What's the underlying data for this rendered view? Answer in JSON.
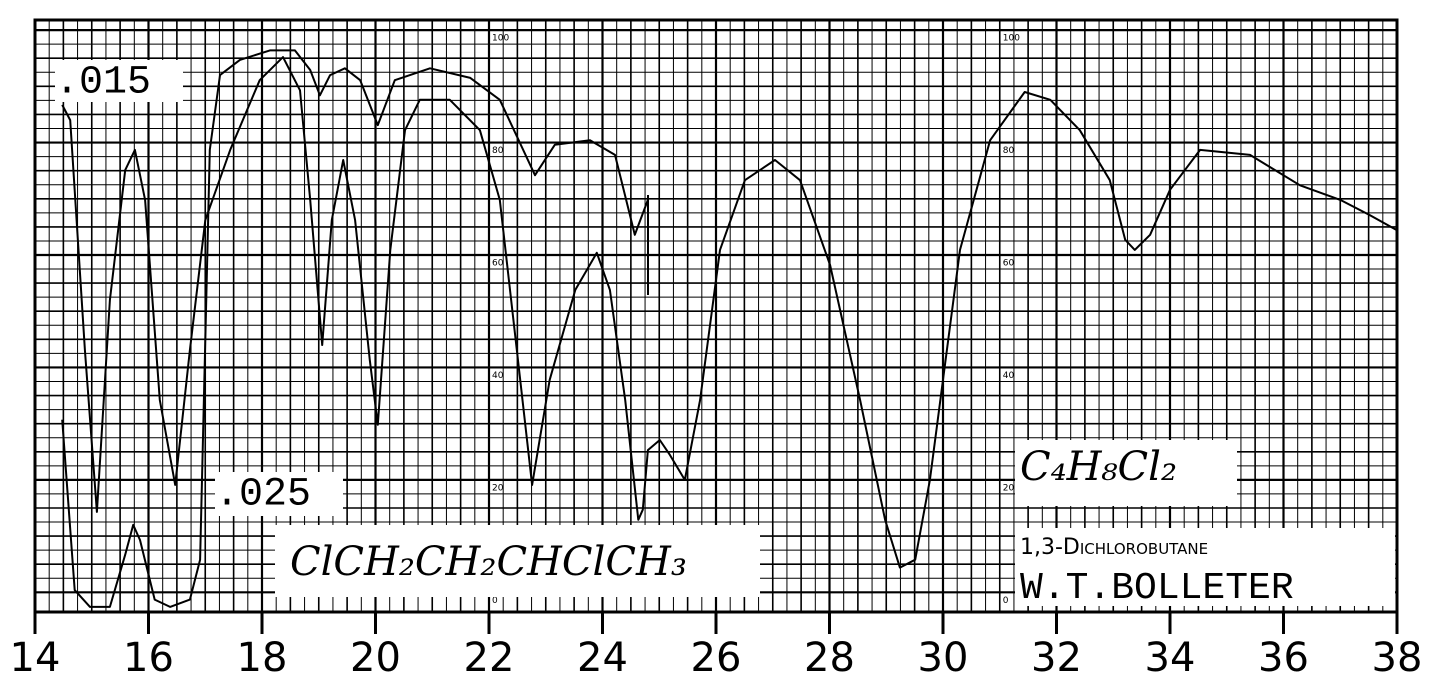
{
  "chart_data": {
    "type": "line",
    "annotations": {
      "formula": "ClCH₂CH₂CHClCH₃",
      "molecular_formula": "C₄H₈Cl₂",
      "compound": "1,3-Dichlorobutane",
      "author": "W.T.BOLLETER"
    },
    "xlim": [
      14,
      38
    ],
    "xticks": [
      14,
      16,
      18,
      20,
      22,
      24,
      26,
      28,
      30,
      32,
      34,
      36,
      38
    ],
    "ylim": [
      -3.5,
      101.8
    ],
    "yticks": [
      0,
      20,
      40,
      60,
      80,
      100
    ],
    "grid": true,
    "series": [
      {
        "name": ".015",
        "color": "#000000",
        "x": [
          14.48,
          14.62,
          14.88,
          15.09,
          15.32,
          15.59,
          15.76,
          15.94,
          16.2,
          16.47,
          16.73,
          17.0,
          17.44,
          17.96,
          18.37,
          18.67,
          18.85,
          19.06,
          19.23,
          19.43,
          19.64,
          19.9,
          20.04,
          20.26,
          20.52,
          20.78,
          21.31,
          21.84,
          22.19,
          22.55,
          22.76,
          23.07,
          23.52,
          23.9,
          24.13,
          24.4,
          24.63,
          24.71,
          24.8,
          25.01,
          25.19,
          25.45,
          25.72,
          26.07,
          26.51,
          27.04,
          27.48,
          28.01,
          28.54,
          28.98,
          29.24,
          29.51,
          29.77,
          30.3,
          30.83,
          31.44,
          31.89,
          32.41,
          32.94,
          33.21,
          33.38,
          33.65,
          34.0,
          34.53,
          35.41,
          36.29,
          37.0,
          37.52,
          38.0
        ],
        "values": [
          86.7,
          84.0,
          43.1,
          14.3,
          52.0,
          75.1,
          78.7,
          69.8,
          34.2,
          19.1,
          43.1,
          66.2,
          78.7,
          91.1,
          95.2,
          89.3,
          69.8,
          44.0,
          66.2,
          76.9,
          66.2,
          41.3,
          29.8,
          60.9,
          82.2,
          87.6,
          87.6,
          82.2,
          69.8,
          37.8,
          19.1,
          37.8,
          53.8,
          60.4,
          53.8,
          34.2,
          12.9,
          14.7,
          25.3,
          27.1,
          24.4,
          20.0,
          34.2,
          60.9,
          73.3,
          76.9,
          73.3,
          58.2,
          34.2,
          12.9,
          4.4,
          5.8,
          20.0,
          60.9,
          80.4,
          89.0,
          87.6,
          82.2,
          73.3,
          62.7,
          60.9,
          63.6,
          71.6,
          78.7,
          77.8,
          72.4,
          69.8,
          67.1,
          64.4
        ]
      },
      {
        "name": ".025",
        "color": "#000000",
        "x": [
          14.48,
          14.7,
          14.97,
          15.32,
          15.59,
          15.73,
          15.85,
          16.11,
          16.38,
          16.73,
          16.91,
          17.08,
          17.26,
          17.61,
          18.14,
          18.58,
          18.85,
          19.02,
          19.2,
          19.46,
          19.73,
          20.04,
          20.34,
          20.96,
          21.67,
          22.19,
          22.81,
          23.16,
          23.78,
          24.22,
          24.57,
          24.8
        ],
        "values": [
          30.7,
          0.4,
          -2.6,
          -2.6,
          6.7,
          12.0,
          9.3,
          -1.3,
          -2.6,
          -1.3,
          5.8,
          78.7,
          92.0,
          94.7,
          96.4,
          96.4,
          92.9,
          88.4,
          92.0,
          93.2,
          91.1,
          83.1,
          91.1,
          93.2,
          91.5,
          87.6,
          74.2,
          79.6,
          80.4,
          77.8,
          63.6,
          69.8
        ]
      }
    ]
  }
}
